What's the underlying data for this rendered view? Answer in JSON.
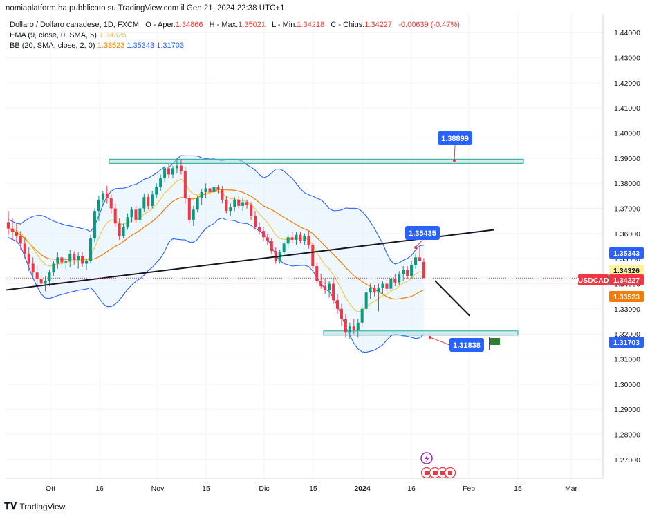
{
  "header": {
    "publisher_line": "nomiaplatform ha pubblicato su TradingView.com il Gen 21, 2024 22:38 UTC+1"
  },
  "legend": {
    "symbol_line": {
      "name": "Dollaro / Dollaro canadese, 1D, FXCM",
      "o_label": "O - Aper.",
      "o_value": "1.34866",
      "h_label": "H - Max.",
      "h_value": "1.35021",
      "l_label": "L - Min.",
      "l_value": "1.34218",
      "c_label": "C - Chius.",
      "c_value": "1.34227",
      "change": "-0.00639 (-0.47%)"
    },
    "ema_line": {
      "label": "EMA (9, close, 0, SMA, 5)",
      "value": "1.34326"
    },
    "bb_line": {
      "label": "BB (20, SMA, close, 2, 0)",
      "v1": "1.33523",
      "v2": "1.35343",
      "v3": "1.31703"
    }
  },
  "chart_data": {
    "type": "candlestick",
    "symbol": "USDCAD",
    "ylim": [
      1.2625,
      1.4475
    ],
    "y_ticks": [
      "1.44000",
      "1.43000",
      "1.42000",
      "1.41000",
      "1.40000",
      "1.39000",
      "1.38000",
      "1.37000",
      "1.36000",
      "1.35000",
      "1.34000",
      "1.33000",
      "1.32000",
      "1.31000",
      "1.30000",
      "1.29000",
      "1.28000",
      "1.27000"
    ],
    "x_ticks": [
      "Ott",
      "16",
      "Nov",
      "15",
      "Dic",
      "15",
      "2024",
      "16",
      "Feb",
      "15",
      "Mar"
    ],
    "candles": [
      {
        "o": 1.3645,
        "h": 1.369,
        "l": 1.3595,
        "c": 1.362
      },
      {
        "o": 1.362,
        "h": 1.366,
        "l": 1.3575,
        "c": 1.3605
      },
      {
        "o": 1.3605,
        "h": 1.364,
        "l": 1.3565,
        "c": 1.359
      },
      {
        "o": 1.359,
        "h": 1.361,
        "l": 1.3535,
        "c": 1.356
      },
      {
        "o": 1.356,
        "h": 1.3585,
        "l": 1.35,
        "c": 1.352
      },
      {
        "o": 1.352,
        "h": 1.3545,
        "l": 1.345,
        "c": 1.348
      },
      {
        "o": 1.348,
        "h": 1.3505,
        "l": 1.342,
        "c": 1.3445
      },
      {
        "o": 1.3445,
        "h": 1.3475,
        "l": 1.3395,
        "c": 1.342
      },
      {
        "o": 1.342,
        "h": 1.3445,
        "l": 1.3385,
        "c": 1.34
      },
      {
        "o": 1.34,
        "h": 1.343,
        "l": 1.337,
        "c": 1.341
      },
      {
        "o": 1.341,
        "h": 1.3455,
        "l": 1.339,
        "c": 1.3445
      },
      {
        "o": 1.3445,
        "h": 1.349,
        "l": 1.343,
        "c": 1.348
      },
      {
        "o": 1.348,
        "h": 1.3525,
        "l": 1.346,
        "c": 1.3505
      },
      {
        "o": 1.3505,
        "h": 1.351,
        "l": 1.347,
        "c": 1.3485
      },
      {
        "o": 1.3485,
        "h": 1.3505,
        "l": 1.3455,
        "c": 1.349
      },
      {
        "o": 1.349,
        "h": 1.3535,
        "l": 1.3465,
        "c": 1.352
      },
      {
        "o": 1.352,
        "h": 1.353,
        "l": 1.3475,
        "c": 1.3495
      },
      {
        "o": 1.3495,
        "h": 1.3525,
        "l": 1.346,
        "c": 1.351
      },
      {
        "o": 1.351,
        "h": 1.3525,
        "l": 1.3465,
        "c": 1.348
      },
      {
        "o": 1.348,
        "h": 1.35,
        "l": 1.3455,
        "c": 1.349
      },
      {
        "o": 1.349,
        "h": 1.3595,
        "l": 1.348,
        "c": 1.358
      },
      {
        "o": 1.358,
        "h": 1.37,
        "l": 1.3565,
        "c": 1.369
      },
      {
        "o": 1.369,
        "h": 1.375,
        "l": 1.365,
        "c": 1.3735
      },
      {
        "o": 1.3735,
        "h": 1.377,
        "l": 1.371,
        "c": 1.376
      },
      {
        "o": 1.376,
        "h": 1.379,
        "l": 1.372,
        "c": 1.374
      },
      {
        "o": 1.374,
        "h": 1.376,
        "l": 1.368,
        "c": 1.37
      },
      {
        "o": 1.37,
        "h": 1.372,
        "l": 1.3625,
        "c": 1.364
      },
      {
        "o": 1.364,
        "h": 1.366,
        "l": 1.3575,
        "c": 1.359
      },
      {
        "o": 1.359,
        "h": 1.364,
        "l": 1.358,
        "c": 1.3625
      },
      {
        "o": 1.3625,
        "h": 1.368,
        "l": 1.3615,
        "c": 1.3665
      },
      {
        "o": 1.3665,
        "h": 1.3705,
        "l": 1.3645,
        "c": 1.3695
      },
      {
        "o": 1.3695,
        "h": 1.371,
        "l": 1.364,
        "c": 1.3655
      },
      {
        "o": 1.3655,
        "h": 1.371,
        "l": 1.364,
        "c": 1.37
      },
      {
        "o": 1.37,
        "h": 1.376,
        "l": 1.3685,
        "c": 1.3745
      },
      {
        "o": 1.3745,
        "h": 1.376,
        "l": 1.3695,
        "c": 1.371
      },
      {
        "o": 1.371,
        "h": 1.377,
        "l": 1.37,
        "c": 1.3755
      },
      {
        "o": 1.3755,
        "h": 1.38,
        "l": 1.374,
        "c": 1.3785
      },
      {
        "o": 1.3785,
        "h": 1.3835,
        "l": 1.377,
        "c": 1.382
      },
      {
        "o": 1.382,
        "h": 1.387,
        "l": 1.3805,
        "c": 1.386
      },
      {
        "o": 1.386,
        "h": 1.3875,
        "l": 1.382,
        "c": 1.3835
      },
      {
        "o": 1.3835,
        "h": 1.387,
        "l": 1.382,
        "c": 1.386
      },
      {
        "o": 1.386,
        "h": 1.39,
        "l": 1.384,
        "c": 1.387
      },
      {
        "o": 1.387,
        "h": 1.3895,
        "l": 1.3835,
        "c": 1.385
      },
      {
        "o": 1.385,
        "h": 1.3865,
        "l": 1.372,
        "c": 1.374
      },
      {
        "o": 1.374,
        "h": 1.3755,
        "l": 1.364,
        "c": 1.3655
      },
      {
        "o": 1.3655,
        "h": 1.371,
        "l": 1.363,
        "c": 1.3695
      },
      {
        "o": 1.3695,
        "h": 1.375,
        "l": 1.3685,
        "c": 1.374
      },
      {
        "o": 1.374,
        "h": 1.3775,
        "l": 1.3715,
        "c": 1.3765
      },
      {
        "o": 1.3765,
        "h": 1.38,
        "l": 1.374,
        "c": 1.378
      },
      {
        "o": 1.378,
        "h": 1.3805,
        "l": 1.3745,
        "c": 1.3765
      },
      {
        "o": 1.3765,
        "h": 1.38,
        "l": 1.3735,
        "c": 1.3785
      },
      {
        "o": 1.3785,
        "h": 1.3795,
        "l": 1.376,
        "c": 1.3775
      },
      {
        "o": 1.3775,
        "h": 1.379,
        "l": 1.372,
        "c": 1.3735
      },
      {
        "o": 1.3735,
        "h": 1.375,
        "l": 1.368,
        "c": 1.369
      },
      {
        "o": 1.369,
        "h": 1.372,
        "l": 1.367,
        "c": 1.3705
      },
      {
        "o": 1.3705,
        "h": 1.3745,
        "l": 1.369,
        "c": 1.3735
      },
      {
        "o": 1.3735,
        "h": 1.375,
        "l": 1.37,
        "c": 1.371
      },
      {
        "o": 1.371,
        "h": 1.374,
        "l": 1.369,
        "c": 1.3725
      },
      {
        "o": 1.3725,
        "h": 1.3735,
        "l": 1.37,
        "c": 1.3715
      },
      {
        "o": 1.3715,
        "h": 1.3725,
        "l": 1.3655,
        "c": 1.367
      },
      {
        "o": 1.367,
        "h": 1.369,
        "l": 1.3615,
        "c": 1.3625
      },
      {
        "o": 1.3625,
        "h": 1.3645,
        "l": 1.3595,
        "c": 1.361
      },
      {
        "o": 1.361,
        "h": 1.3625,
        "l": 1.357,
        "c": 1.3585
      },
      {
        "o": 1.3585,
        "h": 1.36,
        "l": 1.3555,
        "c": 1.357
      },
      {
        "o": 1.357,
        "h": 1.358,
        "l": 1.352,
        "c": 1.353
      },
      {
        "o": 1.353,
        "h": 1.3545,
        "l": 1.348,
        "c": 1.349
      },
      {
        "o": 1.349,
        "h": 1.3535,
        "l": 1.348,
        "c": 1.3525
      },
      {
        "o": 1.3525,
        "h": 1.357,
        "l": 1.351,
        "c": 1.356
      },
      {
        "o": 1.356,
        "h": 1.3595,
        "l": 1.354,
        "c": 1.3585
      },
      {
        "o": 1.3585,
        "h": 1.3605,
        "l": 1.356,
        "c": 1.3575
      },
      {
        "o": 1.3575,
        "h": 1.3605,
        "l": 1.3555,
        "c": 1.3595
      },
      {
        "o": 1.3595,
        "h": 1.3605,
        "l": 1.356,
        "c": 1.357
      },
      {
        "o": 1.357,
        "h": 1.36,
        "l": 1.3555,
        "c": 1.359
      },
      {
        "o": 1.359,
        "h": 1.361,
        "l": 1.354,
        "c": 1.3555
      },
      {
        "o": 1.3555,
        "h": 1.3565,
        "l": 1.346,
        "c": 1.347
      },
      {
        "o": 1.347,
        "h": 1.3485,
        "l": 1.34,
        "c": 1.341
      },
      {
        "o": 1.341,
        "h": 1.344,
        "l": 1.338,
        "c": 1.339
      },
      {
        "o": 1.339,
        "h": 1.342,
        "l": 1.336,
        "c": 1.3375
      },
      {
        "o": 1.3375,
        "h": 1.341,
        "l": 1.3345,
        "c": 1.34
      },
      {
        "o": 1.34,
        "h": 1.342,
        "l": 1.332,
        "c": 1.3335
      },
      {
        "o": 1.3335,
        "h": 1.336,
        "l": 1.328,
        "c": 1.33
      },
      {
        "o": 1.33,
        "h": 1.332,
        "l": 1.323,
        "c": 1.326
      },
      {
        "o": 1.326,
        "h": 1.328,
        "l": 1.3185,
        "c": 1.3205
      },
      {
        "o": 1.3205,
        "h": 1.3245,
        "l": 1.318,
        "c": 1.323
      },
      {
        "o": 1.323,
        "h": 1.326,
        "l": 1.32,
        "c": 1.3215
      },
      {
        "o": 1.3215,
        "h": 1.326,
        "l": 1.3185,
        "c": 1.3245
      },
      {
        "o": 1.3245,
        "h": 1.331,
        "l": 1.323,
        "c": 1.33
      },
      {
        "o": 1.33,
        "h": 1.338,
        "l": 1.3285,
        "c": 1.3365
      },
      {
        "o": 1.3365,
        "h": 1.34,
        "l": 1.334,
        "c": 1.3385
      },
      {
        "o": 1.3385,
        "h": 1.3395,
        "l": 1.335,
        "c": 1.3365
      },
      {
        "o": 1.3365,
        "h": 1.34,
        "l": 1.329,
        "c": 1.3385
      },
      {
        "o": 1.3385,
        "h": 1.341,
        "l": 1.336,
        "c": 1.34
      },
      {
        "o": 1.34,
        "h": 1.342,
        "l": 1.3365,
        "c": 1.338
      },
      {
        "o": 1.338,
        "h": 1.343,
        "l": 1.337,
        "c": 1.342
      },
      {
        "o": 1.342,
        "h": 1.344,
        "l": 1.339,
        "c": 1.3405
      },
      {
        "o": 1.3405,
        "h": 1.345,
        "l": 1.3395,
        "c": 1.344
      },
      {
        "o": 1.344,
        "h": 1.347,
        "l": 1.341,
        "c": 1.3455
      },
      {
        "o": 1.3455,
        "h": 1.347,
        "l": 1.342,
        "c": 1.343
      },
      {
        "o": 1.343,
        "h": 1.349,
        "l": 1.342,
        "c": 1.3475
      },
      {
        "o": 1.3475,
        "h": 1.352,
        "l": 1.346,
        "c": 1.3505
      },
      {
        "o": 1.3505,
        "h": 1.3545,
        "l": 1.349,
        "c": 1.349
      },
      {
        "o": 1.3487,
        "h": 1.3502,
        "l": 1.3422,
        "c": 1.3423
      }
    ],
    "horizontal_zones": [
      {
        "from": 1.3886,
        "to": 1.3896
      },
      {
        "from": 1.3197,
        "to": 1.3212
      }
    ],
    "trendline": {
      "start_price": 1.3375,
      "end_price": 1.3615
    },
    "projection_line": {
      "from_price": 1.3412,
      "to_price": 1.3273
    },
    "annotations": [
      {
        "label": "1.38899",
        "price": 1.38899
      },
      {
        "label": "1.35435",
        "price": 1.35435
      },
      {
        "label": "1.31838",
        "price": 1.31838
      }
    ],
    "price_badges": [
      {
        "label": "1.35343",
        "price": 1.35343,
        "color": "#2962ff",
        "text_color": "#ffffff"
      },
      {
        "label": "1.34326",
        "price": 1.34326,
        "color": "#fff59d",
        "text_color": "#131722"
      },
      {
        "label": "USDCAD",
        "price": 1.34227,
        "color": "#f23645",
        "text_color": "#ffffff",
        "side": "left"
      },
      {
        "label": "1.34227",
        "price": 1.34227,
        "color": "#f23645",
        "text_color": "#ffffff"
      },
      {
        "label": "1.33523",
        "price": 1.33523,
        "color": "#f57c00",
        "text_color": "#ffffff"
      },
      {
        "label": "1.31703",
        "price": 1.31703,
        "color": "#2962ff",
        "text_color": "#ffffff"
      }
    ],
    "colors": {
      "up": "#089981",
      "down": "#f23645",
      "ema": "#f2c94c",
      "bb_basis": "#f57c00",
      "bb_band": "#2962ff",
      "bb_fill": "#e3f2fd",
      "zone_fill": "#b2dfdb",
      "zone_border": "#26a69a",
      "trendline": "#131722",
      "annotation": "#2962ff"
    },
    "icons": [
      "flag-icon",
      "lightning-icon",
      "ca-flag-icon"
    ]
  },
  "footer": {
    "brand": "TradingView"
  }
}
